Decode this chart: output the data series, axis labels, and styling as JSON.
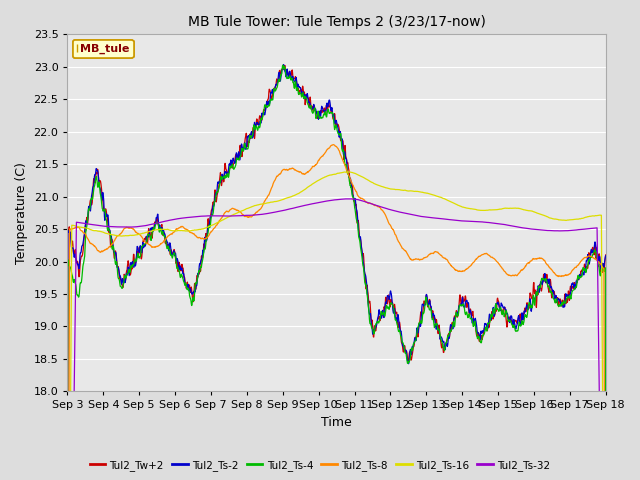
{
  "title": "MB Tule Tower: Tule Temps 2 (3/23/17-now)",
  "xlabel": "Time",
  "ylabel": "Temperature (C)",
  "ylim": [
    18.0,
    23.5
  ],
  "yticks": [
    18.0,
    18.5,
    19.0,
    19.5,
    20.0,
    20.5,
    21.0,
    21.5,
    22.0,
    22.5,
    23.0,
    23.5
  ],
  "xtick_labels": [
    "Sep 3",
    "Sep 4",
    "Sep 5",
    "Sep 6",
    "Sep 7",
    "Sep 8",
    "Sep 9",
    "Sep 10",
    "Sep 11",
    "Sep 12",
    "Sep 13",
    "Sep 14",
    "Sep 15",
    "Sep 16",
    "Sep 17",
    "Sep 18"
  ],
  "legend_label_box": "MB_tule",
  "series_colors": {
    "Tul2_Tw+2": "#cc0000",
    "Tul2_Ts-2": "#0000cc",
    "Tul2_Ts-4": "#00bb00",
    "Tul2_Ts-8": "#ff8800",
    "Tul2_Ts-16": "#dddd00",
    "Tul2_Ts-32": "#9900cc"
  },
  "bg_color": "#dddddd",
  "plot_bg": "#e8e8e8",
  "grid_color": "#ffffff",
  "title_fontsize": 10,
  "axis_fontsize": 9,
  "tick_fontsize": 8,
  "n_points": 1500
}
